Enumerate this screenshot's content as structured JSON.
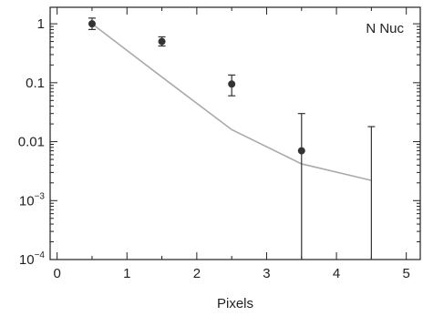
{
  "chart_data": {
    "type": "scatter",
    "title": "",
    "xlabel": "Pixels",
    "ylabel": "",
    "xlim": [
      -0.1,
      5.2
    ],
    "ylim_log10": [
      -4,
      0.28
    ],
    "y_scale": "log",
    "grid": false,
    "annotation": "N  Nuc",
    "x_ticks": [
      0,
      1,
      2,
      3,
      4,
      5
    ],
    "x_tick_labels": [
      "0",
      "1",
      "2",
      "3",
      "4",
      "5"
    ],
    "y_ticks": [
      1,
      0.1,
      0.01,
      0.001,
      0.0001
    ],
    "y_tick_labels": [
      {
        "base": "1",
        "exp": ""
      },
      {
        "base": "0.1",
        "exp": ""
      },
      {
        "base": "0.01",
        "exp": ""
      },
      {
        "base": "10",
        "exp": "−3"
      },
      {
        "base": "10",
        "exp": "−4"
      }
    ],
    "points": [
      {
        "x": 0.5,
        "y": 1.0,
        "y_low": 0.8,
        "y_high": 1.25
      },
      {
        "x": 1.5,
        "y": 0.5,
        "y_low": 0.42,
        "y_high": 0.6
      },
      {
        "x": 2.5,
        "y": 0.095,
        "y_low": 0.06,
        "y_high": 0.135
      },
      {
        "x": 3.5,
        "y": 0.007,
        "y_low": 0.0001,
        "y_high": 0.03
      },
      {
        "x": 4.5,
        "y": null,
        "y_low": 0.0001,
        "y_high": 0.018
      }
    ],
    "model_line": {
      "x": [
        0.5,
        1.5,
        2.5,
        3.5,
        4.5
      ],
      "y": [
        1.0,
        0.125,
        0.016,
        0.0042,
        0.0022
      ]
    },
    "colors": {
      "points": "#333333",
      "model_line": "#aaaaaa",
      "axes": "#222222"
    }
  }
}
